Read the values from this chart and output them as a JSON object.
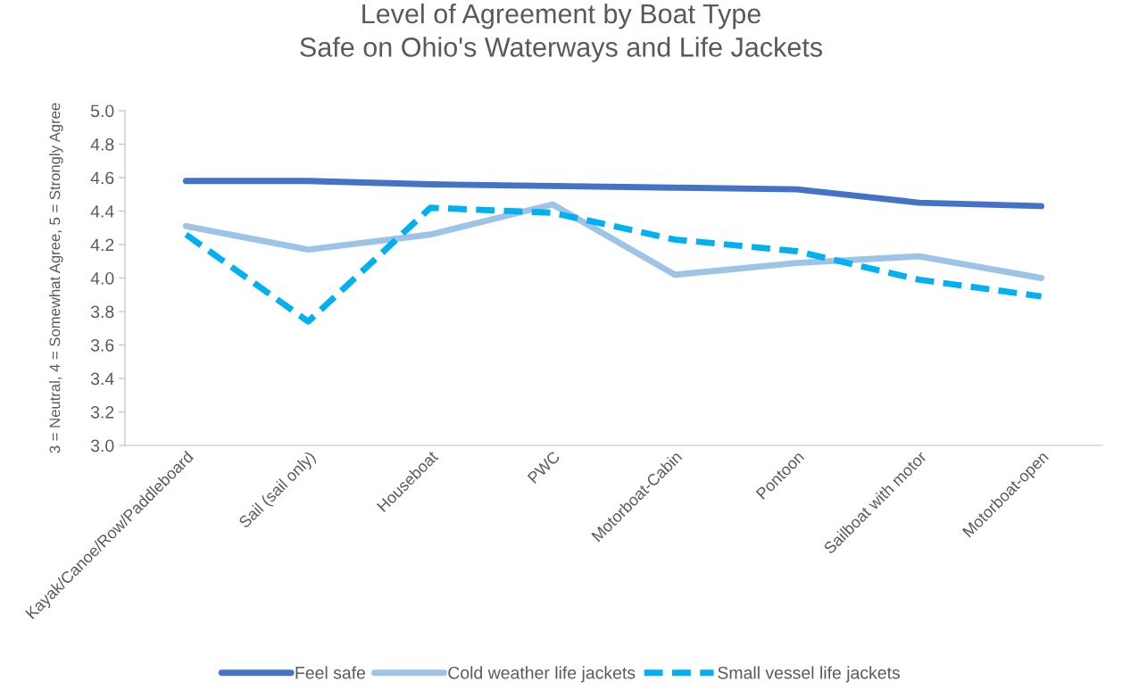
{
  "chart_data": {
    "type": "line",
    "title": "Level of Agreement by Boat Type\nSafe on Ohio's Waterways and Life Jackets",
    "ylabel": "3 = Neutral, 4 = Somewhat Agree, 5 = Strongly Agree",
    "categories": [
      "Kayak/Canoe/Row/Paddleboard",
      "Sail (sail only)",
      "Houseboat",
      "PWC",
      "Motorboat-Cabin",
      "Pontoon",
      "Sailboat with motor",
      "Motorboat-open"
    ],
    "series": [
      {
        "name": "Feel safe",
        "color": "#4472c4",
        "line_style": "solid",
        "values": [
          4.58,
          4.58,
          4.56,
          4.55,
          4.54,
          4.53,
          4.45,
          4.43
        ]
      },
      {
        "name": "Cold weather life jackets",
        "color": "#9dc3e6",
        "line_style": "solid",
        "values": [
          4.31,
          4.17,
          4.26,
          4.44,
          4.02,
          4.09,
          4.13,
          4.0
        ]
      },
      {
        "name": "Small vessel life jackets",
        "color": "#00b0f0",
        "line_style": "dashed",
        "values": [
          4.26,
          3.74,
          4.42,
          4.39,
          4.23,
          4.16,
          3.99,
          3.89
        ]
      }
    ],
    "ylim": [
      3.0,
      5.0
    ],
    "yticks": [
      {
        "value": 3.0,
        "label": "3.0"
      },
      {
        "value": 3.2,
        "label": "3.2"
      },
      {
        "value": 3.4,
        "label": "3.4"
      },
      {
        "value": 3.6,
        "label": "3.6"
      },
      {
        "value": 3.8,
        "label": "3.8"
      },
      {
        "value": 4.0,
        "label": "4.0"
      },
      {
        "value": 4.2,
        "label": "4.2"
      },
      {
        "value": 4.4,
        "label": "4.4"
      },
      {
        "value": 4.6,
        "label": "4.6"
      },
      {
        "value": 4.8,
        "label": "4.8"
      },
      {
        "value": 5.0,
        "label": "5.0"
      }
    ],
    "legend": "bottom",
    "marker": "none"
  }
}
